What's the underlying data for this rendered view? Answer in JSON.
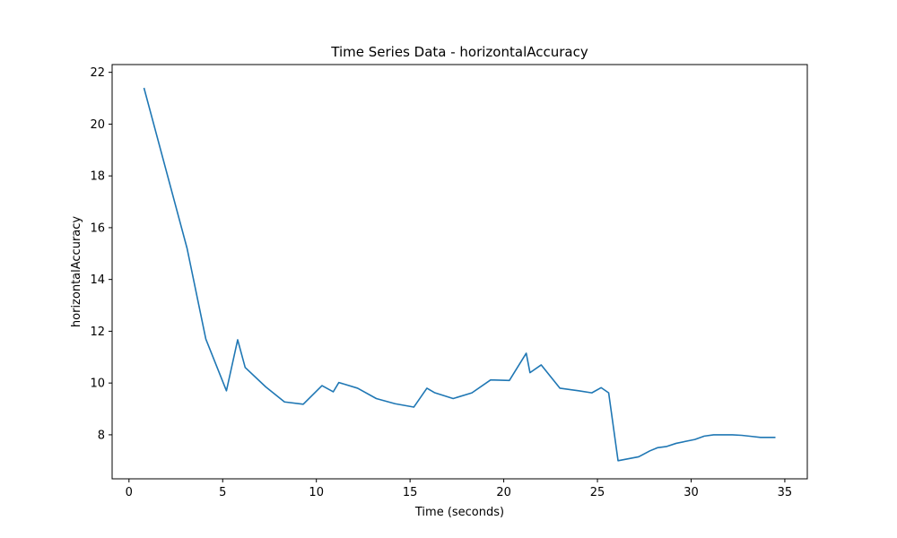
{
  "chart_data": {
    "type": "line",
    "title": "Time Series Data - horizontalAccuracy",
    "xlabel": "Time (seconds)",
    "ylabel": "horizontalAccuracy",
    "xlim": [
      -0.9,
      36.2
    ],
    "ylim": [
      6.3,
      22.3
    ],
    "xticks": [
      0,
      5,
      10,
      15,
      20,
      25,
      30,
      35
    ],
    "yticks": [
      8,
      10,
      12,
      14,
      16,
      18,
      20,
      22
    ],
    "grid": false,
    "line_color": "#1f77b4",
    "series": [
      {
        "x": [
          0.8,
          3.1,
          4.1,
          5.2,
          5.8,
          6.2,
          7.3,
          8.3,
          9.3,
          10.3,
          10.9,
          11.2,
          12.2,
          13.2,
          14.2,
          15.2,
          15.9,
          16.3,
          17.3,
          18.3,
          19.3,
          20.3,
          21.2,
          21.4,
          22.0,
          23.0,
          24.0,
          24.7,
          25.2,
          25.6,
          26.1,
          27.2,
          27.8,
          28.2,
          28.7,
          29.2,
          30.2,
          30.7,
          31.2,
          32.2,
          32.7,
          33.2,
          33.7,
          34.5
        ],
        "y": [
          21.4,
          15.2,
          11.7,
          9.7,
          11.67,
          10.6,
          9.85,
          9.27,
          9.18,
          9.9,
          9.66,
          10.02,
          9.8,
          9.4,
          9.2,
          9.07,
          9.8,
          9.63,
          9.4,
          9.62,
          10.12,
          10.1,
          11.15,
          10.4,
          10.7,
          9.8,
          9.7,
          9.62,
          9.82,
          9.62,
          7.0,
          7.15,
          7.38,
          7.5,
          7.55,
          7.67,
          7.82,
          7.95,
          8.0,
          8.0,
          7.98,
          7.94,
          7.9,
          7.9
        ]
      }
    ]
  }
}
